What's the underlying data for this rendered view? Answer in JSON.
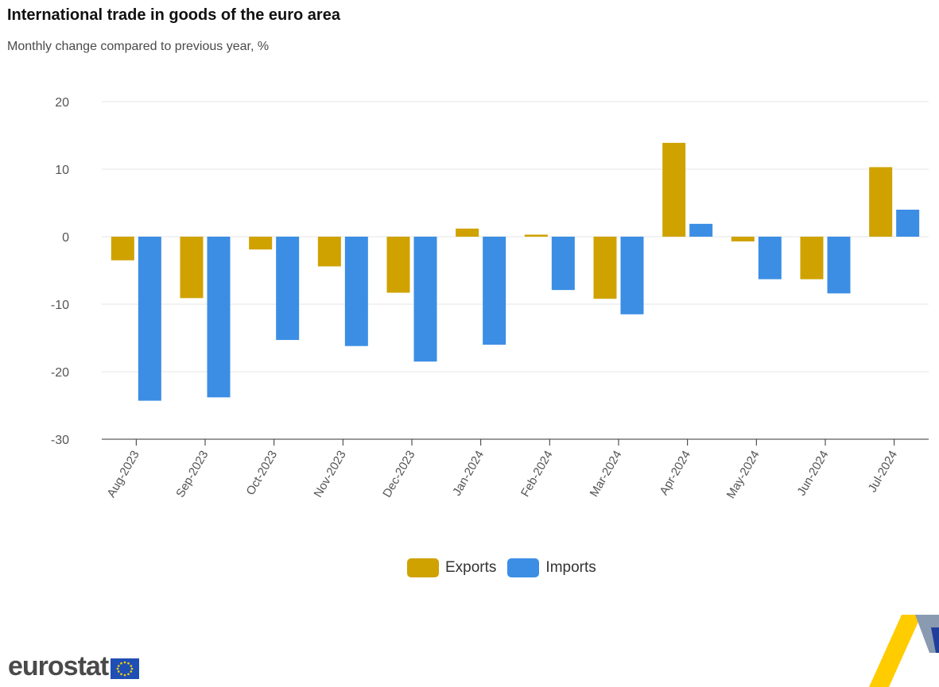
{
  "header": {
    "title": "International trade in goods of the euro area",
    "subtitle": "Monthly change compared to previous year, %"
  },
  "chart_data": {
    "type": "bar",
    "title": "International trade in goods of the euro area",
    "subtitle": "Monthly change compared to previous year, %",
    "xlabel": "",
    "ylabel": "",
    "ylim": [
      -30,
      20
    ],
    "yticks": [
      20,
      10,
      0,
      -10,
      -20,
      -30
    ],
    "grid": true,
    "legend_position": "bottom-center",
    "categories": [
      "Aug-2023",
      "Sep-2023",
      "Oct-2023",
      "Nov-2023",
      "Dec-2023",
      "Jan-2024",
      "Feb-2024",
      "Mar-2024",
      "Apr-2024",
      "May-2024",
      "Jun-2024",
      "Jul-2024"
    ],
    "series": [
      {
        "name": "Exports",
        "color": "#cfa200",
        "values": [
          -3.5,
          -9.1,
          -1.9,
          -4.4,
          -8.3,
          1.2,
          0.3,
          -9.2,
          13.9,
          -0.7,
          -6.3,
          10.3
        ]
      },
      {
        "name": "Imports",
        "color": "#3b8ee4",
        "values": [
          -24.3,
          -23.8,
          -15.3,
          -16.2,
          -18.5,
          -16.0,
          -7.9,
          -11.5,
          1.9,
          -6.3,
          -8.4,
          4.0
        ]
      }
    ]
  },
  "legend": {
    "exports": "Exports",
    "imports": "Imports"
  },
  "branding": {
    "logo_text": "eurostat"
  },
  "colors": {
    "exports": "#cfa200",
    "imports": "#3b8ee4",
    "grid": "#e6e6e6",
    "axis": "#333333"
  }
}
